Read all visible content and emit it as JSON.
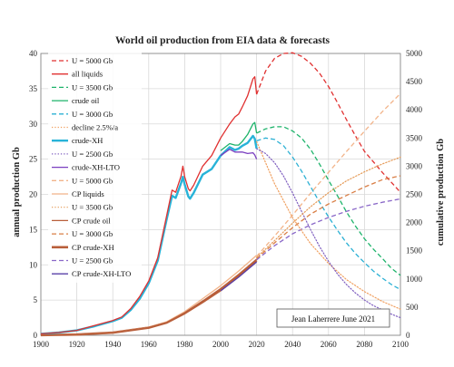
{
  "chart_data": {
    "type": "line",
    "title": "World oil production from EIA data & forecasts",
    "ylabel_left": "annual production Gb",
    "ylabel_right": "cumulative production Gb",
    "x_ticks": [
      "1900",
      "1920",
      "1940",
      "1960",
      "1980",
      "2000",
      "2020",
      "2040",
      "2060",
      "2080",
      "2100"
    ],
    "y_left_ticks": [
      "0",
      "5",
      "10",
      "15",
      "20",
      "25",
      "30",
      "35",
      "40"
    ],
    "y_right_ticks": [
      "0",
      "500",
      "1000",
      "1500",
      "2000",
      "2500",
      "3000",
      "3500",
      "4000",
      "4500",
      "5000"
    ],
    "xlim": [
      1900,
      2100
    ],
    "ylim_left": [
      0,
      40
    ],
    "ylim_right": [
      0,
      5000
    ],
    "grid": true,
    "legend_position": "left, inside plot",
    "credit": "Jean Laherrere June 2021",
    "series": [
      {
        "name": "U = 5000 Gb",
        "axis": "left",
        "color": "#e03030",
        "style": "dashed",
        "width": 1.3,
        "points": [
          [
            2020,
            34.2
          ],
          [
            2025,
            37.5
          ],
          [
            2030,
            39.3
          ],
          [
            2035,
            40.0
          ],
          [
            2040,
            40.1
          ],
          [
            2045,
            39.6
          ],
          [
            2050,
            38.6
          ],
          [
            2055,
            37.2
          ],
          [
            2060,
            35.3
          ],
          [
            2065,
            33.0
          ],
          [
            2070,
            30.6
          ],
          [
            2075,
            28.3
          ],
          [
            2080,
            26.1
          ],
          [
            2085,
            24.6
          ],
          [
            2090,
            23.1
          ],
          [
            2095,
            21.7
          ],
          [
            2100,
            20.3
          ]
        ]
      },
      {
        "name": "all liquids",
        "axis": "left",
        "color": "#e03030",
        "style": "solid",
        "width": 1.3,
        "points": [
          [
            1900,
            0.2
          ],
          [
            1910,
            0.4
          ],
          [
            1920,
            0.7
          ],
          [
            1930,
            1.4
          ],
          [
            1940,
            2.1
          ],
          [
            1945,
            2.6
          ],
          [
            1950,
            3.8
          ],
          [
            1955,
            5.5
          ],
          [
            1960,
            7.7
          ],
          [
            1965,
            11.0
          ],
          [
            1970,
            17.0
          ],
          [
            1973,
            20.6
          ],
          [
            1975,
            20.3
          ],
          [
            1978,
            22.6
          ],
          [
            1979,
            24.0
          ],
          [
            1980,
            22.5
          ],
          [
            1982,
            20.8
          ],
          [
            1983,
            20.5
          ],
          [
            1985,
            21.3
          ],
          [
            1990,
            24.0
          ],
          [
            1995,
            25.5
          ],
          [
            2000,
            28.0
          ],
          [
            2005,
            30.0
          ],
          [
            2008,
            31.0
          ],
          [
            2010,
            31.4
          ],
          [
            2012,
            32.4
          ],
          [
            2015,
            34.0
          ],
          [
            2018,
            36.4
          ],
          [
            2019,
            36.7
          ],
          [
            2020,
            34.2
          ]
        ]
      },
      {
        "name": "U = 3500 Gb",
        "axis": "left",
        "color": "#1db36a",
        "style": "dashed",
        "width": 1.3,
        "points": [
          [
            2020,
            28.7
          ],
          [
            2025,
            29.3
          ],
          [
            2030,
            29.6
          ],
          [
            2035,
            29.6
          ],
          [
            2040,
            29.0
          ],
          [
            2045,
            28.0
          ],
          [
            2050,
            26.4
          ],
          [
            2055,
            24.3
          ],
          [
            2060,
            22.0
          ],
          [
            2065,
            19.8
          ],
          [
            2070,
            17.5
          ],
          [
            2075,
            15.5
          ],
          [
            2080,
            13.7
          ],
          [
            2085,
            12.2
          ],
          [
            2090,
            10.9
          ],
          [
            2095,
            9.5
          ],
          [
            2100,
            8.5
          ]
        ]
      },
      {
        "name": "crude oil",
        "axis": "left",
        "color": "#1db36a",
        "style": "solid",
        "width": 1.3,
        "points": [
          [
            2000,
            26.2
          ],
          [
            2005,
            27.2
          ],
          [
            2008,
            27.0
          ],
          [
            2010,
            27.0
          ],
          [
            2012,
            27.5
          ],
          [
            2015,
            28.5
          ],
          [
            2018,
            30.0
          ],
          [
            2019,
            30.2
          ],
          [
            2020,
            28.7
          ]
        ]
      },
      {
        "name": "U = 3000 Gb",
        "axis": "left",
        "color": "#2bb0d4",
        "style": "dashed",
        "width": 1.3,
        "points": [
          [
            2020,
            27.6
          ],
          [
            2025,
            28.0
          ],
          [
            2030,
            27.8
          ],
          [
            2035,
            26.9
          ],
          [
            2040,
            25.3
          ],
          [
            2045,
            23.3
          ],
          [
            2050,
            21.1
          ],
          [
            2055,
            18.9
          ],
          [
            2060,
            16.8
          ],
          [
            2065,
            14.9
          ],
          [
            2070,
            13.1
          ],
          [
            2075,
            11.6
          ],
          [
            2080,
            10.3
          ],
          [
            2085,
            9.1
          ],
          [
            2090,
            8.1
          ],
          [
            2095,
            7.2
          ],
          [
            2100,
            6.5
          ]
        ]
      },
      {
        "name": "decline 2.5%/a",
        "axis": "left",
        "color": "#f0a060",
        "style": "dotted",
        "width": 1.2,
        "points": [
          [
            2020,
            27.5
          ],
          [
            2030,
            21.5
          ],
          [
            2040,
            16.7
          ],
          [
            2050,
            13.0
          ],
          [
            2060,
            10.2
          ],
          [
            2070,
            7.9
          ],
          [
            2080,
            6.2
          ],
          [
            2090,
            4.8
          ],
          [
            2100,
            3.7
          ]
        ]
      },
      {
        "name": "crude-XH",
        "axis": "left",
        "color": "#28b3d8",
        "style": "solid",
        "width": 2.4,
        "points": [
          [
            1900,
            0.2
          ],
          [
            1910,
            0.4
          ],
          [
            1920,
            0.7
          ],
          [
            1930,
            1.3
          ],
          [
            1940,
            2.0
          ],
          [
            1945,
            2.5
          ],
          [
            1950,
            3.6
          ],
          [
            1955,
            5.2
          ],
          [
            1960,
            7.4
          ],
          [
            1965,
            10.6
          ],
          [
            1970,
            16.5
          ],
          [
            1973,
            19.8
          ],
          [
            1975,
            19.5
          ],
          [
            1978,
            21.6
          ],
          [
            1979,
            22.5
          ],
          [
            1980,
            21.4
          ],
          [
            1982,
            19.7
          ],
          [
            1983,
            19.4
          ],
          [
            1985,
            20.2
          ],
          [
            1990,
            22.8
          ],
          [
            1995,
            23.6
          ],
          [
            2000,
            25.5
          ],
          [
            2005,
            26.7
          ],
          [
            2008,
            26.3
          ],
          [
            2010,
            26.5
          ],
          [
            2012,
            26.9
          ],
          [
            2015,
            27.3
          ],
          [
            2018,
            28.3
          ],
          [
            2019,
            27.9
          ],
          [
            2020,
            26.5
          ]
        ]
      },
      {
        "name": "U = 2500 Gb",
        "axis": "left",
        "color": "#8060c0",
        "style": "dotted",
        "width": 1.2,
        "points": [
          [
            2020,
            26.5
          ],
          [
            2025,
            25.8
          ],
          [
            2030,
            24.5
          ],
          [
            2035,
            22.6
          ],
          [
            2040,
            20.2
          ],
          [
            2045,
            17.6
          ],
          [
            2050,
            15.0
          ],
          [
            2055,
            12.6
          ],
          [
            2060,
            10.5
          ],
          [
            2065,
            8.7
          ],
          [
            2070,
            7.2
          ],
          [
            2075,
            6.0
          ],
          [
            2080,
            5.0
          ],
          [
            2085,
            4.2
          ],
          [
            2090,
            3.6
          ],
          [
            2095,
            3.0
          ],
          [
            2100,
            2.5
          ]
        ]
      },
      {
        "name": "crude-XH-LTO",
        "axis": "left",
        "color": "#7a3ec0",
        "style": "solid",
        "width": 1.3,
        "points": [
          [
            2000,
            25.5
          ],
          [
            2005,
            26.4
          ],
          [
            2008,
            26.0
          ],
          [
            2010,
            26.0
          ],
          [
            2012,
            26.0
          ],
          [
            2015,
            25.8
          ],
          [
            2018,
            25.9
          ],
          [
            2019,
            25.6
          ],
          [
            2020,
            25.0
          ]
        ]
      },
      {
        "name": "U = 5000 Gb",
        "axis": "right",
        "color": "#f2b48a",
        "style": "dashed",
        "width": 1.3,
        "points": [
          [
            2020,
            1400
          ],
          [
            2030,
            1760
          ],
          [
            2040,
            2130
          ],
          [
            2050,
            2520
          ],
          [
            2060,
            2890
          ],
          [
            2070,
            3260
          ],
          [
            2080,
            3620
          ],
          [
            2090,
            3970
          ],
          [
            2100,
            4290
          ]
        ]
      },
      {
        "name": "CP liquids",
        "axis": "right",
        "color": "#f2b48a",
        "style": "solid",
        "width": 1.3,
        "points": [
          [
            1900,
            4
          ],
          [
            1920,
            14
          ],
          [
            1940,
            50
          ],
          [
            1960,
            145
          ],
          [
            1970,
            240
          ],
          [
            1980,
            420
          ],
          [
            1990,
            650
          ],
          [
            2000,
            880
          ],
          [
            2010,
            1140
          ],
          [
            2020,
            1420
          ]
        ]
      },
      {
        "name": "U = 3500 Gb",
        "axis": "right",
        "color": "#e59a56",
        "style": "dotted",
        "width": 1.2,
        "points": [
          [
            2020,
            1380
          ],
          [
            2030,
            1680
          ],
          [
            2040,
            1990
          ],
          [
            2050,
            2280
          ],
          [
            2060,
            2530
          ],
          [
            2070,
            2740
          ],
          [
            2080,
            2900
          ],
          [
            2090,
            3040
          ],
          [
            2100,
            3160
          ]
        ]
      },
      {
        "name": "CP crude oil",
        "axis": "right",
        "color": "#b85e3a",
        "style": "solid",
        "width": 1.3,
        "points": [
          [
            1900,
            4
          ],
          [
            1920,
            14
          ],
          [
            1940,
            48
          ],
          [
            1960,
            140
          ],
          [
            1970,
            230
          ],
          [
            1980,
            400
          ],
          [
            1990,
            610
          ],
          [
            2000,
            830
          ],
          [
            2010,
            1080
          ],
          [
            2020,
            1350
          ]
        ]
      },
      {
        "name": "U = 3000 Gb",
        "axis": "right",
        "color": "#d97e45",
        "style": "dashed",
        "width": 1.3,
        "points": [
          [
            2020,
            1360
          ],
          [
            2030,
            1640
          ],
          [
            2040,
            1910
          ],
          [
            2050,
            2150
          ],
          [
            2060,
            2330
          ],
          [
            2070,
            2480
          ],
          [
            2080,
            2630
          ],
          [
            2090,
            2760
          ],
          [
            2100,
            2830
          ]
        ]
      },
      {
        "name": "CP crude-XH",
        "axis": "right",
        "color": "#b85e3a",
        "style": "solid",
        "width": 2.6,
        "points": [
          [
            1900,
            4
          ],
          [
            1920,
            13
          ],
          [
            1940,
            46
          ],
          [
            1960,
            135
          ],
          [
            1970,
            225
          ],
          [
            1980,
            390
          ],
          [
            1990,
            590
          ],
          [
            2000,
            800
          ],
          [
            2010,
            1050
          ],
          [
            2020,
            1330
          ]
        ]
      },
      {
        "name": "U = 2500 Gb",
        "axis": "right",
        "color": "#8a68c8",
        "style": "dashed",
        "width": 1.3,
        "points": [
          [
            2020,
            1340
          ],
          [
            2030,
            1590
          ],
          [
            2040,
            1800
          ],
          [
            2050,
            1960
          ],
          [
            2060,
            2090
          ],
          [
            2070,
            2200
          ],
          [
            2080,
            2290
          ],
          [
            2090,
            2360
          ],
          [
            2100,
            2420
          ]
        ]
      },
      {
        "name": "CP crude-XH-LTO",
        "axis": "right",
        "color": "#5a40a8",
        "style": "solid",
        "width": 1.3,
        "points": [
          [
            2000,
            790
          ],
          [
            2010,
            1030
          ],
          [
            2020,
            1300
          ]
        ]
      }
    ]
  }
}
